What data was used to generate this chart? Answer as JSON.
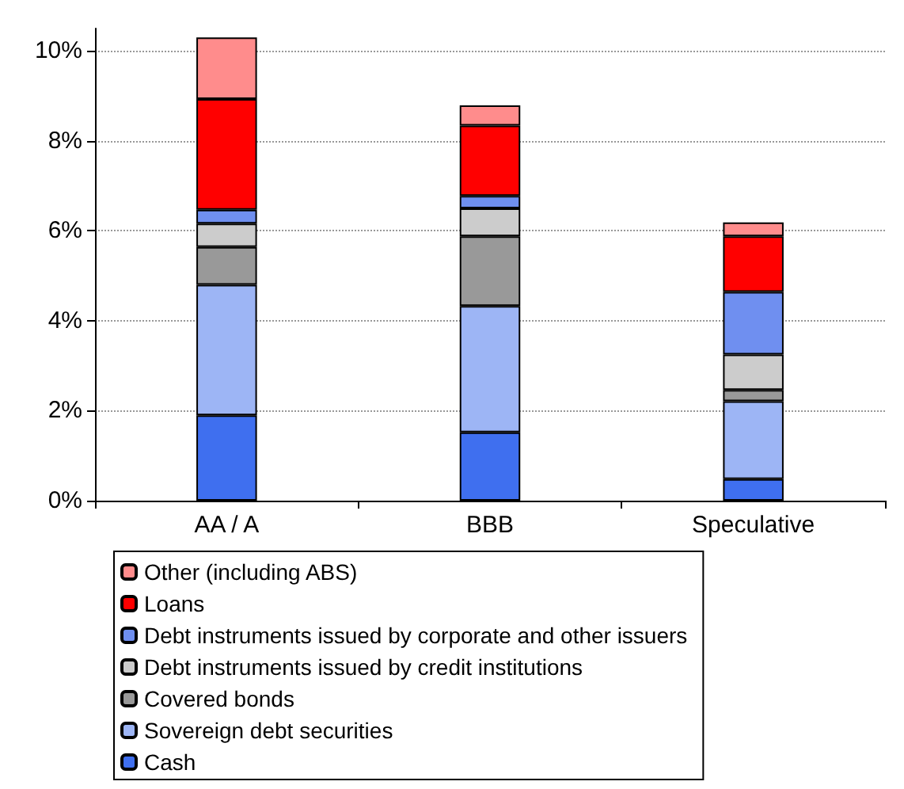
{
  "chart_data": {
    "type": "bar",
    "stacked": true,
    "categories": [
      "AA / A",
      "BBB",
      "Speculative"
    ],
    "series": [
      {
        "name": "Cash",
        "color": "#3f6fef",
        "values": [
          1.9,
          1.52,
          0.48
        ]
      },
      {
        "name": "Sovereign debt securities",
        "color": "#9db5f5",
        "values": [
          2.9,
          2.81,
          1.73
        ]
      },
      {
        "name": "Covered bonds",
        "color": "#999999",
        "values": [
          0.84,
          1.55,
          0.25
        ]
      },
      {
        "name": "Debt instruments issued by credit institutions",
        "color": "#cccccc",
        "values": [
          0.52,
          0.62,
          0.79
        ]
      },
      {
        "name": "Debt instruments issued by corporate and other issuers",
        "color": "#6f8ff0",
        "values": [
          0.31,
          0.28,
          1.39
        ]
      },
      {
        "name": "Loans",
        "color": "#ff0000",
        "values": [
          2.46,
          1.56,
          1.24
        ]
      },
      {
        "name": "Other (including ABS)",
        "color": "#ff8c8c",
        "values": [
          1.37,
          0.45,
          0.31
        ]
      }
    ],
    "ylim": [
      0,
      10.5
    ],
    "yticks": [
      {
        "value": 0,
        "label": "0%"
      },
      {
        "value": 2,
        "label": "2%"
      },
      {
        "value": 4,
        "label": "4%"
      },
      {
        "value": 6,
        "label": "6%"
      },
      {
        "value": 8,
        "label": "8%"
      },
      {
        "value": 10,
        "label": "10%"
      }
    ],
    "grid": "y",
    "legend": "bottom"
  }
}
